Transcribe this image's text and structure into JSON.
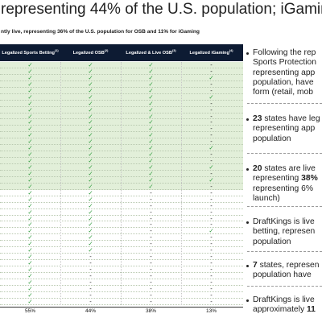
{
  "title": "representing 44% of the U.S. population; iGaming",
  "subtitle": "ntly live, representing 36% of the U.S. population for OSB and 11% for iGaming",
  "table": {
    "headers": [
      {
        "text": "Legalized Sports Betting",
        "note": "(1)"
      },
      {
        "text": "Legalized OSB",
        "note": "(2)"
      },
      {
        "text": "Legalized & Live OSB",
        "note": "(3)"
      },
      {
        "text": "Legalized iGaming",
        "note": "(4)"
      }
    ],
    "rows": [
      [
        "✓",
        "✓",
        "✓",
        "-"
      ],
      [
        "✓",
        "✓",
        "✓",
        "-"
      ],
      [
        "✓",
        "✓",
        "✓",
        "✓"
      ],
      [
        "✓",
        "✓",
        "✓",
        "-"
      ],
      [
        "✓",
        "✓",
        "✓",
        "-"
      ],
      [
        "✓",
        "✓",
        "✓",
        "✓"
      ],
      [
        "✓",
        "✓",
        "✓",
        "-"
      ],
      [
        "✓",
        "✓",
        "✓",
        "-"
      ],
      [
        "✓",
        "✓",
        "✓",
        "-"
      ],
      [
        "✓",
        "✓",
        "✓",
        "-"
      ],
      [
        "✓",
        "✓",
        "✓",
        "-"
      ],
      [
        "✓",
        "✓",
        "✓",
        "-"
      ],
      [
        "✓",
        "✓",
        "✓",
        "-"
      ],
      [
        "✓",
        "✓",
        "✓",
        "✓"
      ],
      [
        "✓",
        "✓",
        "✓",
        "-"
      ],
      [
        "✓",
        "✓",
        "✓",
        "-"
      ],
      [
        "✓",
        "✓",
        "✓",
        "✓"
      ],
      [
        "✓",
        "✓",
        "✓",
        "-"
      ],
      [
        "✓",
        "✓",
        "✓",
        "✓"
      ],
      [
        "✓",
        "✓",
        "✓",
        "-"
      ],
      [
        "✓",
        "✓",
        "-",
        "-"
      ],
      [
        "✓",
        "✓",
        "-",
        "-"
      ],
      [
        "✓",
        "✓",
        "-",
        "-"
      ],
      [
        "✓",
        "✓",
        "-",
        "-"
      ],
      [
        "✓",
        "✓",
        "-",
        "-"
      ],
      [
        "✓",
        "✓",
        "-",
        "-"
      ],
      [
        "✓",
        "✓",
        "-",
        "✓"
      ],
      [
        "✓",
        "✓",
        "-",
        "-"
      ],
      [
        "✓",
        "✓",
        "-",
        "-"
      ],
      [
        "✓",
        "✓",
        "-",
        "-"
      ],
      [
        "✓",
        "-",
        "-",
        "-"
      ],
      [
        "✓",
        "-",
        "-",
        "-"
      ],
      [
        "✓",
        "-",
        "-",
        "-"
      ],
      [
        "✓",
        "-",
        "-",
        "-"
      ],
      [
        "✓",
        "-",
        "-",
        "-"
      ],
      [
        "✓",
        "-",
        "-",
        "-"
      ],
      [
        "✓",
        "-",
        "-",
        "-"
      ],
      [
        "✓",
        "-",
        "-",
        "-"
      ]
    ],
    "totals": [
      "55%",
      "44%",
      "38%",
      "13%"
    ]
  },
  "bullets": [
    [
      {
        "text": "Following the rep"
      },
      {
        "text": "Sports Protection"
      },
      {
        "text": "representing app"
      },
      {
        "text": "population, have"
      },
      {
        "text": "form (retail, mob"
      }
    ],
    [
      {
        "bold": "23",
        "text": " states have leg"
      },
      {
        "text": "representing app"
      },
      {
        "text": "population"
      }
    ],
    [
      {
        "bold": "20",
        "text": " states are live"
      },
      {
        "text": "representing ",
        "bold2": "38%"
      },
      {
        "text": "representing 6%"
      },
      {
        "text": "launch)"
      }
    ],
    [
      {
        "text": "DraftKings is live"
      },
      {
        "text": "betting, represen"
      },
      {
        "text": "population"
      }
    ],
    [
      {
        "bold": "7",
        "text": " states, represen"
      },
      {
        "text": "population have"
      }
    ],
    [
      {
        "text": "DraftKings is live"
      },
      {
        "text": "approximately ",
        "bold2": "11"
      }
    ]
  ]
}
